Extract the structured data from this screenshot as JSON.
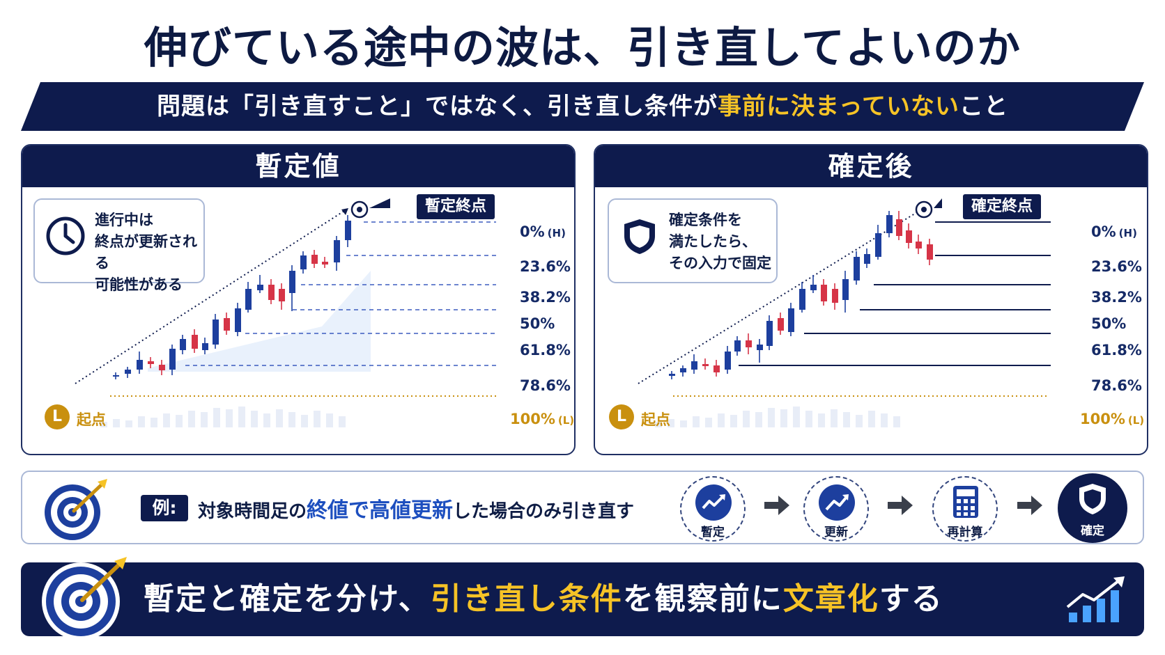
{
  "title": "伸びている途中の波は、引き直してよいのか",
  "banner": {
    "text_before": "問題は「引き直すこと」ではなく、引き直し条件が",
    "text_highlight": "事前に決まっていない",
    "text_after": "こと"
  },
  "left_panel": {
    "header": "暫定値",
    "note_lines": [
      "進行中は",
      "終点が更新される",
      "可能性がある"
    ],
    "note_icon": "clock-icon",
    "end_tag": "暫定終点",
    "origin_letter": "L",
    "origin_label": "起点"
  },
  "right_panel": {
    "header": "確定後",
    "note_lines": [
      "確定条件を",
      "満たしたら、",
      "その入力で固定"
    ],
    "note_icon": "shield-icon",
    "end_tag": "確定終点",
    "origin_letter": "L",
    "origin_label": "起点"
  },
  "levels": [
    {
      "label": "0%",
      "suffix": "(H)"
    },
    {
      "label": "23.6%",
      "suffix": ""
    },
    {
      "label": "38.2%",
      "suffix": ""
    },
    {
      "label": "50%",
      "suffix": ""
    },
    {
      "label": "61.8%",
      "suffix": ""
    },
    {
      "label": "78.6%",
      "suffix": ""
    },
    {
      "label": "100%",
      "suffix": "(L)"
    }
  ],
  "example": {
    "badge": "例:",
    "text_1": "対象時間足の",
    "text_hl_1": "終値",
    "text_2": "で",
    "text_hl_2": "高値更新",
    "text_3": "した場合のみ引き直す",
    "steps": [
      {
        "label": "暫定",
        "icon": "trend-up-icon"
      },
      {
        "label": "更新",
        "icon": "trend-up-icon"
      },
      {
        "label": "再計算",
        "icon": "calculator-icon"
      },
      {
        "label": "確定",
        "icon": "shield-icon"
      }
    ]
  },
  "footer": {
    "text_1": "暫定と確定を分け、",
    "text_hl": "引き直し条件",
    "text_2": "を観察前に",
    "text_hl_2": "文章化",
    "text_3": "する"
  },
  "colors": {
    "navy": "#0e1b4d",
    "yellow": "#f6c326",
    "gold": "#c9900f",
    "candle_up": "#1d3f9e",
    "candle_down": "#d63447",
    "accent_blue": "#1d4fbf"
  }
}
